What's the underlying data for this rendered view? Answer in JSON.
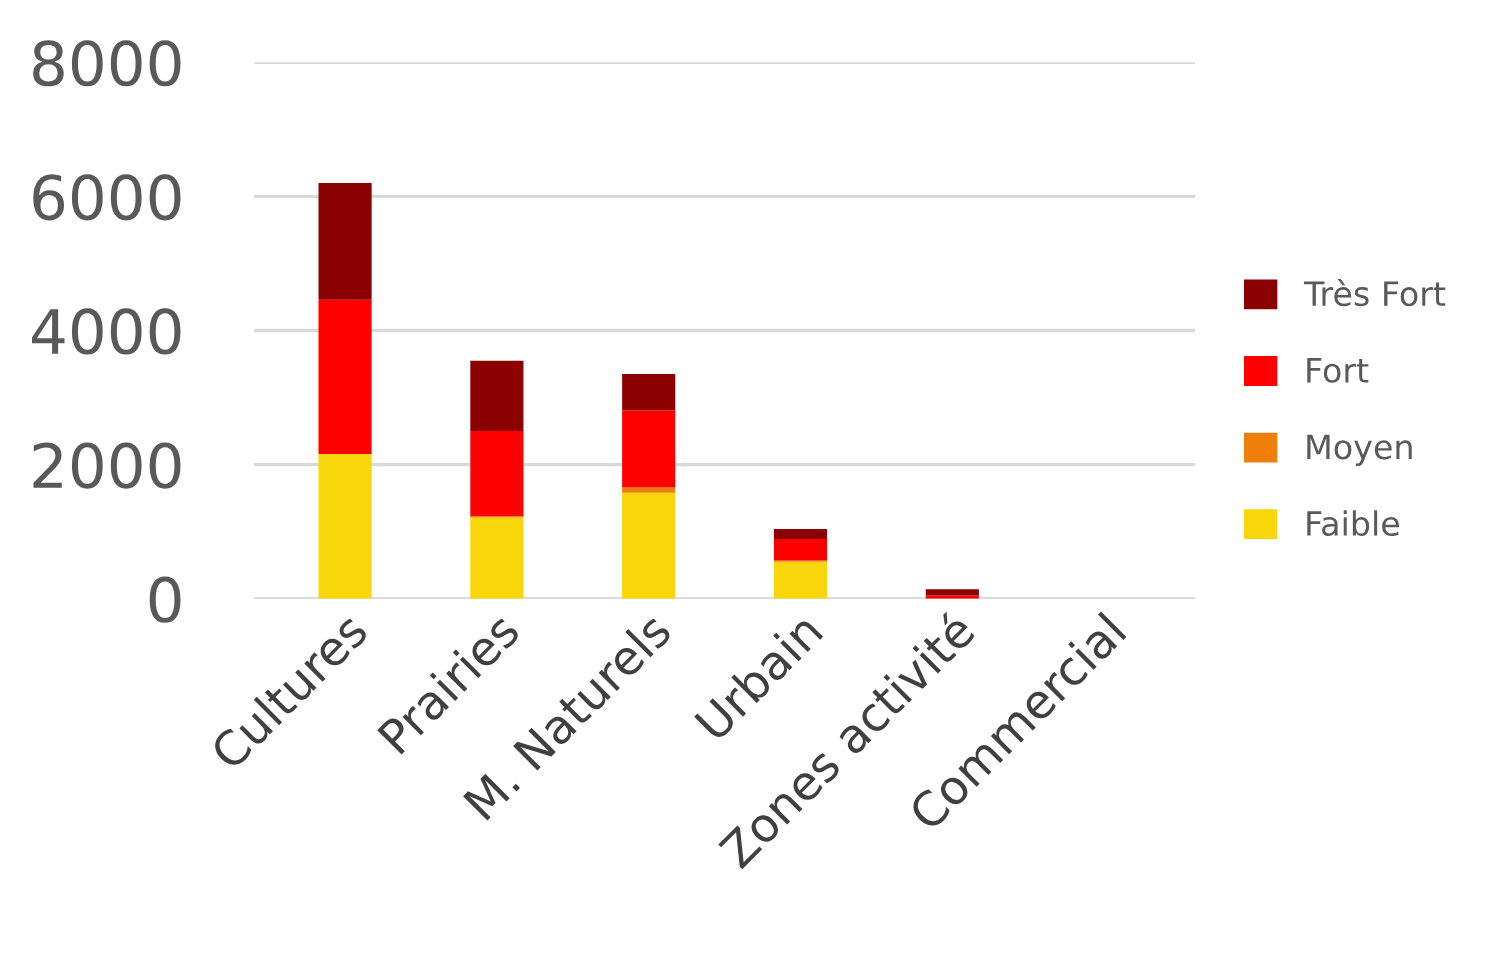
{
  "chart_data": {
    "type": "bar",
    "stacked": true,
    "categories": [
      "Cultures",
      "Prairies",
      "M. Naturels",
      "Urbain",
      "Zones activité",
      "Commercial"
    ],
    "series": [
      {
        "name": "Faible",
        "color": "#f9d60a",
        "values": [
          2160,
          1210,
          1580,
          550,
          0,
          0
        ]
      },
      {
        "name": "Moyen",
        "color": "#ef7f0a",
        "values": [
          0,
          20,
          80,
          20,
          0,
          0
        ]
      },
      {
        "name": "Fort",
        "color": "#ff0000",
        "values": [
          2300,
          1270,
          1150,
          320,
          50,
          0
        ]
      },
      {
        "name": "Très Fort",
        "color": "#8b0000",
        "values": [
          1740,
          1050,
          540,
          150,
          90,
          0
        ]
      }
    ],
    "ylim": [
      0,
      8000
    ],
    "yticks": [
      0,
      2000,
      4000,
      6000,
      8000
    ],
    "grid": "y",
    "legend": "right"
  }
}
